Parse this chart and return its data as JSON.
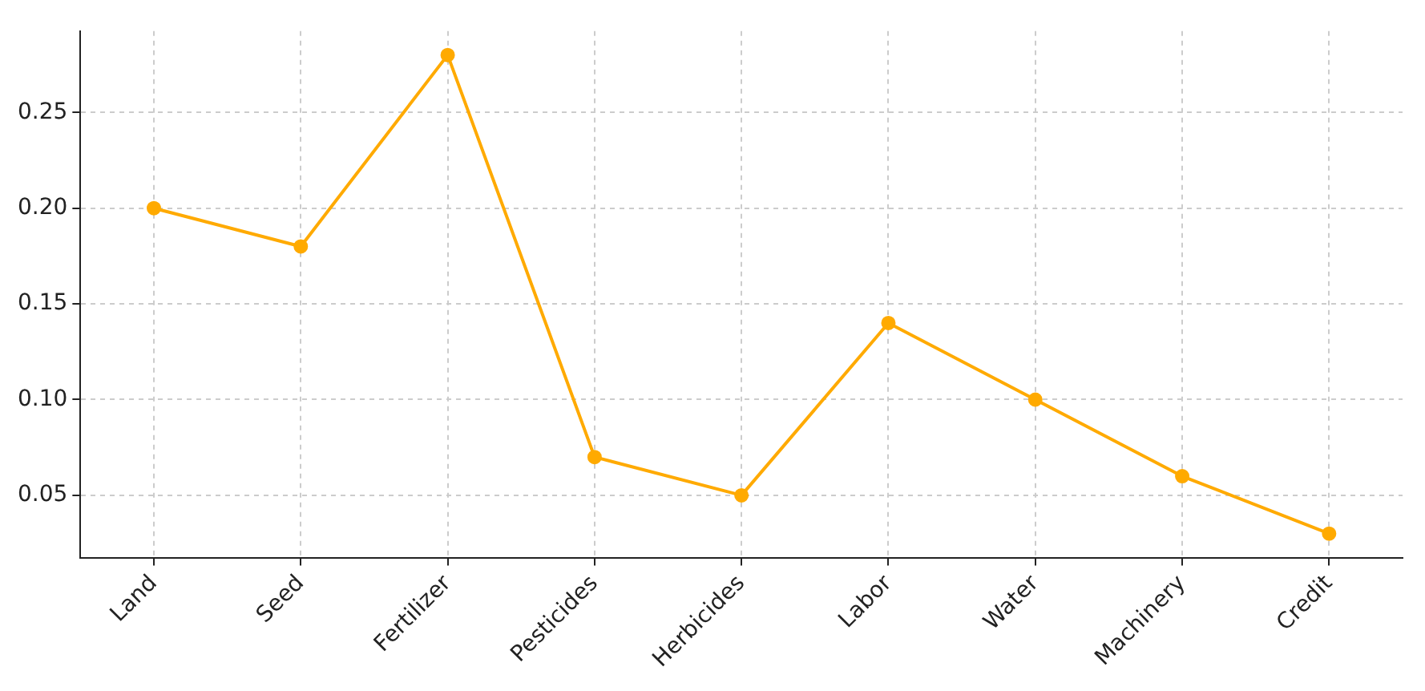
{
  "chart_data": {
    "type": "line",
    "categories": [
      "Land",
      "Seed",
      "Fertilizer",
      "Pesticides",
      "Herbicides",
      "Labor",
      "Water",
      "Machinery",
      "Credit"
    ],
    "series": [
      {
        "color": "#ffaa00",
        "values": [
          0.2,
          0.18,
          0.28,
          0.07,
          0.05,
          0.14,
          0.1,
          0.06,
          0.03
        ]
      }
    ],
    "ylim": [
      0.0175,
      0.2925
    ],
    "yticks": [
      {
        "value": 0.05,
        "label": "0.05"
      },
      {
        "value": 0.1,
        "label": "0.10"
      },
      {
        "value": 0.15,
        "label": "0.15"
      },
      {
        "value": 0.2,
        "label": "0.20"
      },
      {
        "value": 0.25,
        "label": "0.25"
      }
    ],
    "grid": true,
    "marker": "circle",
    "line_style": "solid",
    "legend": false
  }
}
